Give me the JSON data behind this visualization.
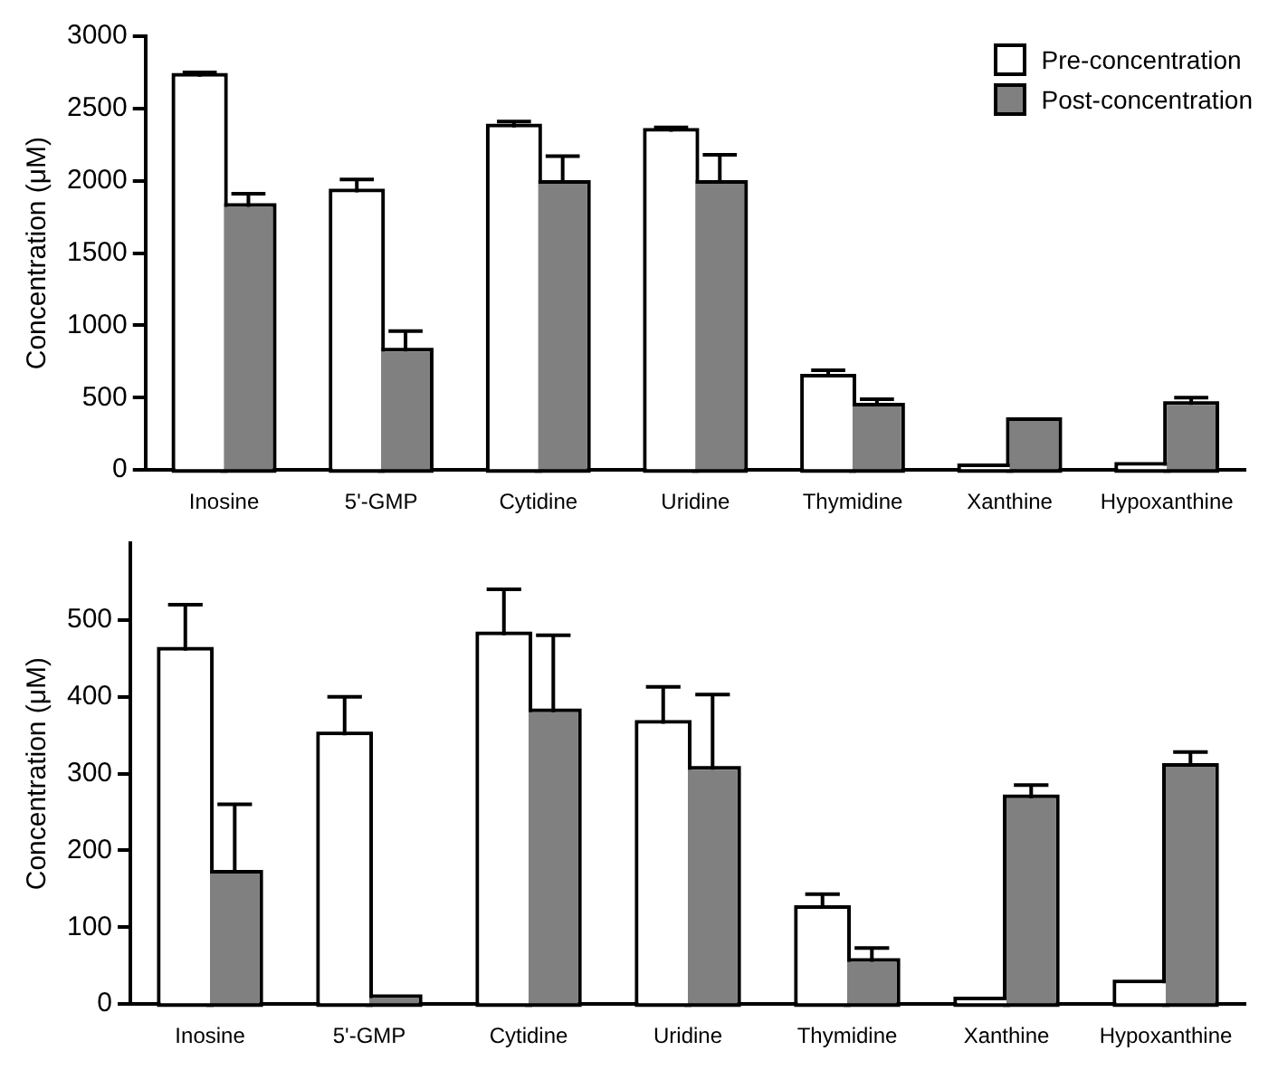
{
  "chart_data": [
    {
      "type": "bar",
      "ylabel": "Concentration (μM)",
      "categories": [
        "Inosine",
        "5'-GMP",
        "Cytidine",
        "Uridine",
        "Thymidine",
        "Xanthine",
        "Hypoxanthine"
      ],
      "series": [
        {
          "name": "Pre-concentration",
          "color": "#ffffff",
          "values": [
            2720,
            1920,
            2370,
            2340,
            640,
            20,
            30
          ],
          "errors": [
            [
              2720,
              2750
            ],
            [
              1920,
              2010
            ],
            [
              2370,
              2410
            ],
            [
              2340,
              2370
            ],
            [
              640,
              690
            ],
            null,
            null
          ]
        },
        {
          "name": "Post-concentration",
          "color": "#808080",
          "values": [
            1820,
            820,
            1980,
            1980,
            440,
            340,
            450
          ],
          "errors": [
            [
              1820,
              1910
            ],
            [
              820,
              960
            ],
            [
              1980,
              2170
            ],
            [
              1980,
              2180
            ],
            [
              440,
              490
            ],
            null,
            [
              450,
              500
            ]
          ]
        }
      ],
      "ylim": [
        0,
        3000
      ],
      "yticks": [
        0,
        500,
        1000,
        1500,
        2000,
        2500,
        3000
      ],
      "grid": false,
      "legend": "top right"
    },
    {
      "type": "bar",
      "ylabel": "Concentration (μM)",
      "categories": [
        "Inosine",
        "5'-GMP",
        "Cytidine",
        "Uridine",
        "Thymidine",
        "Xanthine",
        "Hypoxanthine"
      ],
      "series": [
        {
          "color": "#ffffff",
          "values": [
            460,
            350,
            480,
            365,
            124,
            5,
            27
          ],
          "errors": [
            [
              460,
              520
            ],
            [
              350,
              400
            ],
            [
              480,
              540
            ],
            [
              365,
              413
            ],
            [
              124,
              143
            ],
            null,
            null
          ]
        },
        {
          "color": "#808080",
          "values": [
            170,
            8,
            380,
            305,
            55,
            268,
            309
          ],
          "errors": [
            [
              170,
              260
            ],
            null,
            [
              380,
              480
            ],
            [
              305,
              403
            ],
            [
              55,
              73
            ],
            [
              268,
              285
            ],
            [
              309,
              328
            ]
          ]
        }
      ],
      "ylim": [
        0,
        600
      ],
      "yticks": [
        0,
        100,
        200,
        300,
        400,
        500
      ],
      "grid": false,
      "legend": false
    }
  ]
}
